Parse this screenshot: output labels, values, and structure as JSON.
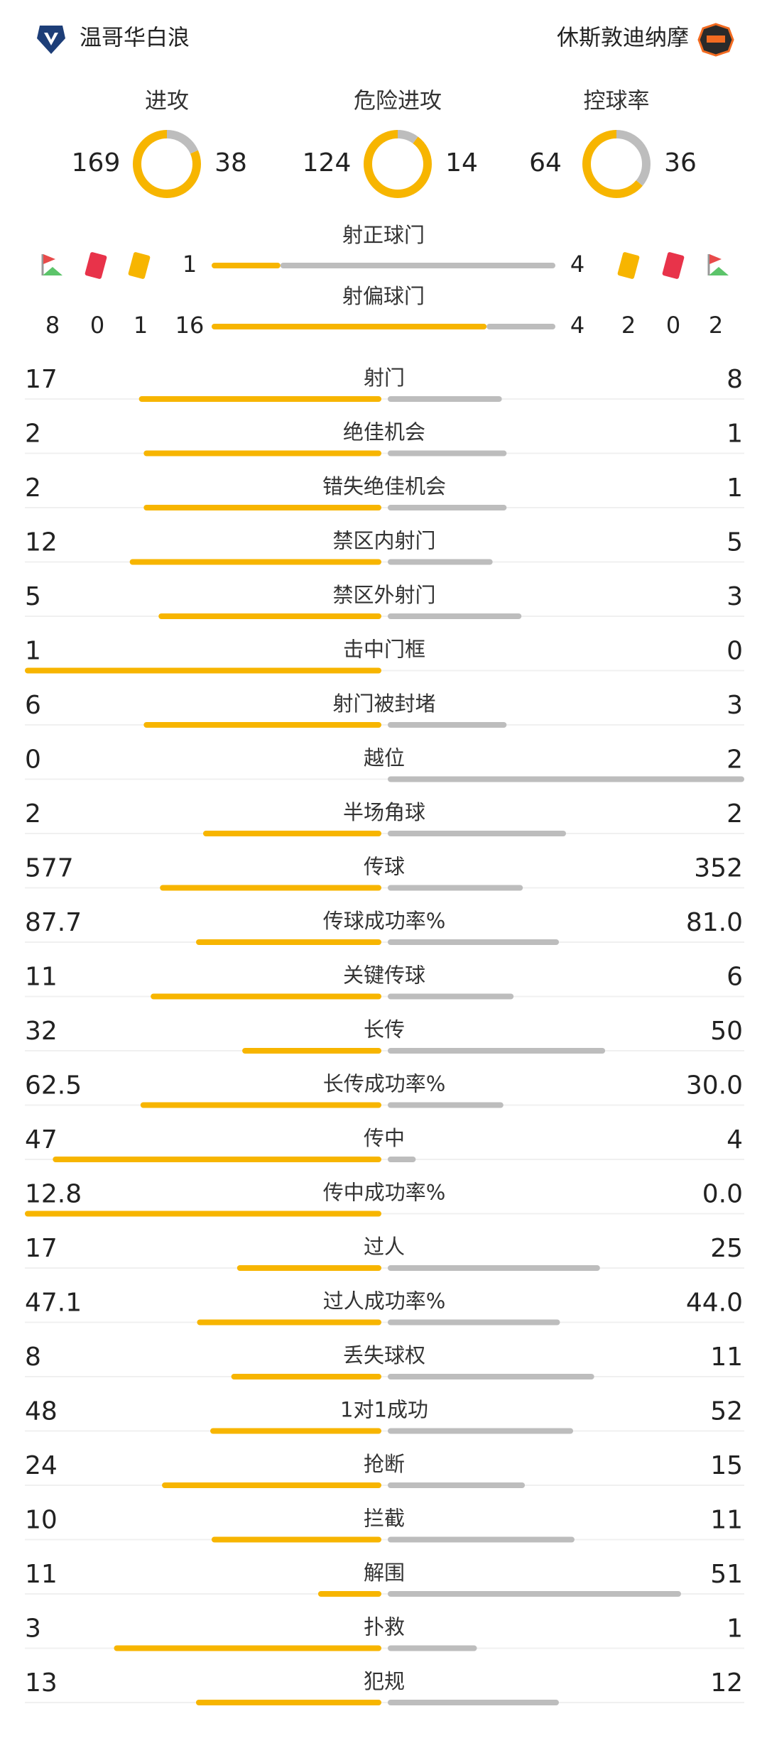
{
  "header": {
    "home_team": "温哥华白浪",
    "away_team": "休斯敦迪纳摩"
  },
  "summary": [
    {
      "label": "进攻",
      "home": 169,
      "away": 38
    },
    {
      "label": "危险进攻",
      "home": 124,
      "away": 14
    },
    {
      "label": "控球率",
      "home": 64,
      "away": 36
    }
  ],
  "shots_on_target": {
    "label": "射正球门",
    "home": 1,
    "away": 4
  },
  "shots_off_target": {
    "label": "射偏球门",
    "home": 16,
    "away": 4
  },
  "discipline": {
    "home": {
      "corners": 8,
      "red_cards": 0,
      "yellow_cards": 1
    },
    "away": {
      "yellow_cards": 2,
      "red_cards": 0,
      "corners": 2
    }
  },
  "stats": [
    {
      "label": "射门",
      "home": 17,
      "away": 8
    },
    {
      "label": "绝佳机会",
      "home": 2,
      "away": 1
    },
    {
      "label": "错失绝佳机会",
      "home": 2,
      "away": 1
    },
    {
      "label": "禁区内射门",
      "home": 12,
      "away": 5
    },
    {
      "label": "禁区外射门",
      "home": 5,
      "away": 3
    },
    {
      "label": "击中门框",
      "home": 1,
      "away": 0
    },
    {
      "label": "射门被封堵",
      "home": 6,
      "away": 3
    },
    {
      "label": "越位",
      "home": 0,
      "away": 2
    },
    {
      "label": "半场角球",
      "home": 2,
      "away": 2
    },
    {
      "label": "传球",
      "home": 577,
      "away": 352
    },
    {
      "label": "传球成功率%",
      "home": 87.7,
      "away": 81,
      "away_label": "81.0"
    },
    {
      "label": "关键传球",
      "home": 11,
      "away": 6
    },
    {
      "label": "长传",
      "home": 32,
      "away": 50
    },
    {
      "label": "长传成功率%",
      "home": 62.5,
      "away": 30,
      "away_label": "30.0"
    },
    {
      "label": "传中",
      "home": 47,
      "away": 4
    },
    {
      "label": "传中成功率%",
      "home": 12.8,
      "away": 0,
      "away_label": "0.0"
    },
    {
      "label": "过人",
      "home": 17,
      "away": 25
    },
    {
      "label": "过人成功率%",
      "home": 47.1,
      "away": 44,
      "away_label": "44.0"
    },
    {
      "label": "丢失球权",
      "home": 8,
      "away": 11
    },
    {
      "label": "1对1成功",
      "home": 48,
      "away": 52
    },
    {
      "label": "抢断",
      "home": 24,
      "away": 15
    },
    {
      "label": "拦截",
      "home": 10,
      "away": 11
    },
    {
      "label": "解围",
      "home": 11,
      "away": 51
    },
    {
      "label": "扑救",
      "home": 3,
      "away": 1
    },
    {
      "label": "犯规",
      "home": 13,
      "away": 12
    }
  ]
}
